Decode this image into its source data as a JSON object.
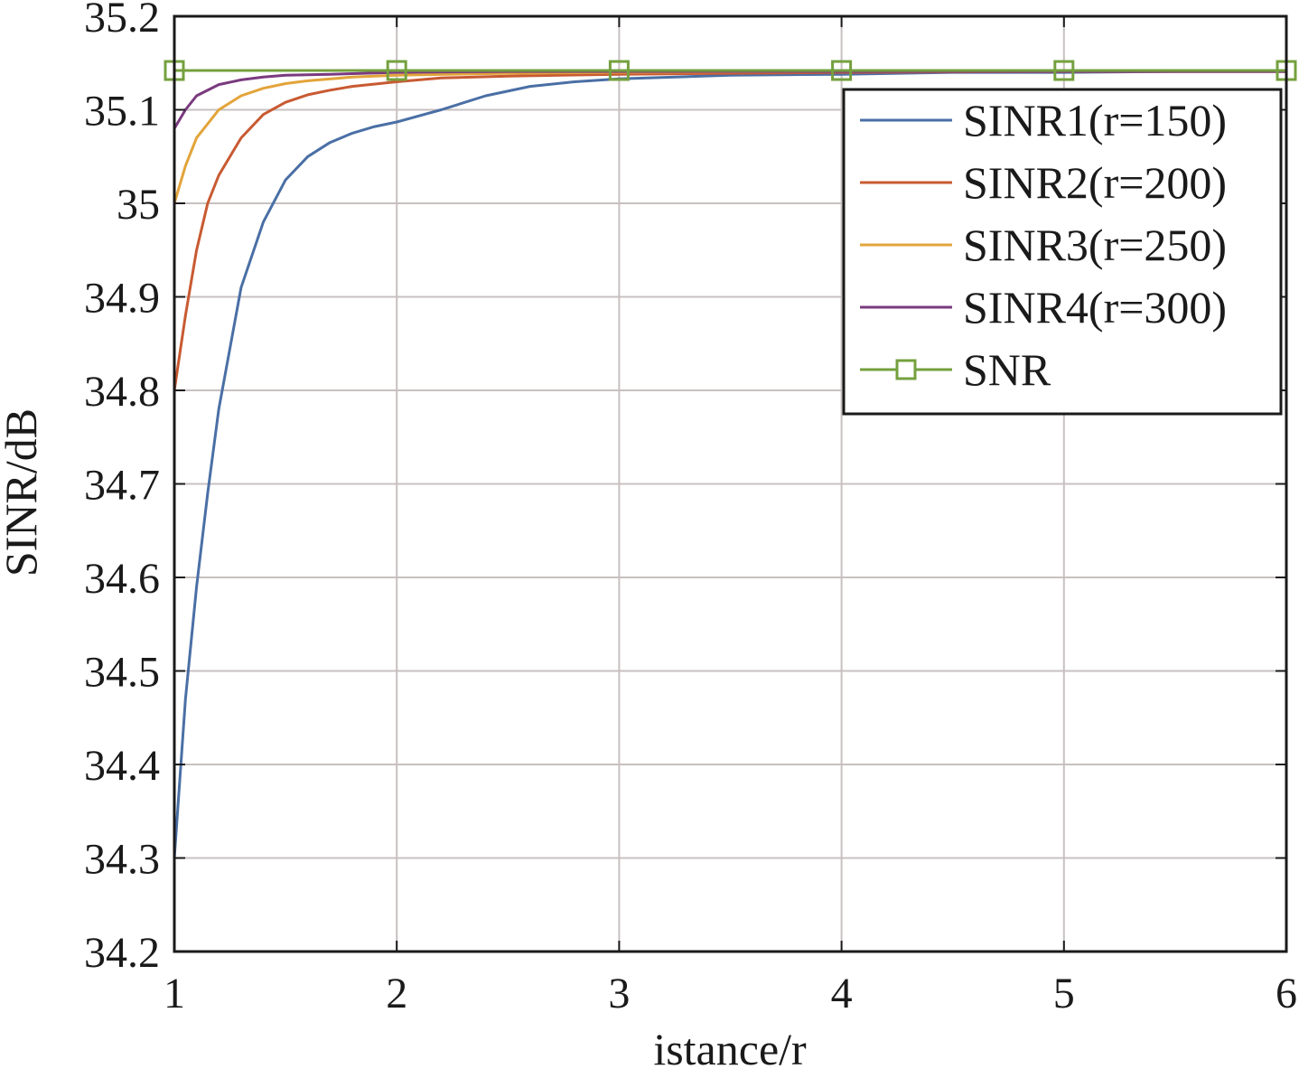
{
  "chart_data": {
    "type": "line",
    "xlabel": "istance/r",
    "ylabel": "SINR/dB",
    "xlim": [
      1,
      6
    ],
    "ylim": [
      34.2,
      35.2
    ],
    "grid": true,
    "legend_position": "top-right",
    "x_ticks": [
      "1",
      "2",
      "3",
      "4",
      "5",
      "6"
    ],
    "y_ticks": [
      "34.2",
      "34.3",
      "34.4",
      "34.5",
      "34.6",
      "34.7",
      "34.8",
      "34.9",
      "35",
      "35.1",
      "35.2"
    ],
    "series": [
      {
        "name": "SINR1(r=150)",
        "color": "#4a6fa5",
        "marker": "none",
        "x": [
          1,
          1.05,
          1.1,
          1.15,
          1.2,
          1.3,
          1.4,
          1.5,
          1.6,
          1.7,
          1.8,
          1.9,
          2,
          2.2,
          2.4,
          2.6,
          2.8,
          3,
          3.5,
          4,
          4.5,
          5,
          5.5,
          6
        ],
        "y": [
          34.3,
          34.47,
          34.59,
          34.69,
          34.78,
          34.91,
          34.98,
          35.025,
          35.05,
          35.065,
          35.075,
          35.082,
          35.087,
          35.1,
          35.115,
          35.125,
          35.13,
          35.133,
          35.137,
          35.138,
          35.14,
          35.14,
          35.141,
          35.141
        ]
      },
      {
        "name": "SINR2(r=200)",
        "color": "#c85a32",
        "marker": "none",
        "x": [
          1,
          1.05,
          1.1,
          1.15,
          1.2,
          1.3,
          1.4,
          1.5,
          1.6,
          1.7,
          1.8,
          2,
          2.2,
          2.5,
          3,
          3.5,
          4,
          5,
          6
        ],
        "y": [
          34.8,
          34.88,
          34.95,
          35.0,
          35.03,
          35.07,
          35.095,
          35.108,
          35.116,
          35.121,
          35.125,
          35.13,
          35.134,
          35.136,
          35.138,
          35.139,
          35.14,
          35.141,
          35.141
        ]
      },
      {
        "name": "SINR3(r=250)",
        "color": "#e3a43a",
        "marker": "none",
        "x": [
          1,
          1.05,
          1.1,
          1.2,
          1.3,
          1.4,
          1.5,
          1.6,
          1.8,
          2,
          2.5,
          3,
          4,
          5,
          6
        ],
        "y": [
          35.0,
          35.04,
          35.07,
          35.1,
          35.115,
          35.123,
          35.128,
          35.131,
          35.135,
          35.137,
          35.139,
          35.14,
          35.141,
          35.141,
          35.141
        ]
      },
      {
        "name": "SINR4(r=300)",
        "color": "#7a3a7e",
        "marker": "none",
        "x": [
          1,
          1.05,
          1.1,
          1.2,
          1.3,
          1.4,
          1.5,
          1.7,
          2,
          2.5,
          3,
          4,
          5,
          6
        ],
        "y": [
          35.08,
          35.1,
          35.115,
          35.127,
          35.132,
          35.135,
          35.137,
          35.138,
          35.14,
          35.141,
          35.141,
          35.141,
          35.141,
          35.141
        ]
      },
      {
        "name": "SNR",
        "color": "#74a03e",
        "marker": "square",
        "x": [
          1,
          2,
          3,
          4,
          5,
          6
        ],
        "y": [
          35.142,
          35.142,
          35.142,
          35.142,
          35.142,
          35.142
        ]
      }
    ]
  }
}
